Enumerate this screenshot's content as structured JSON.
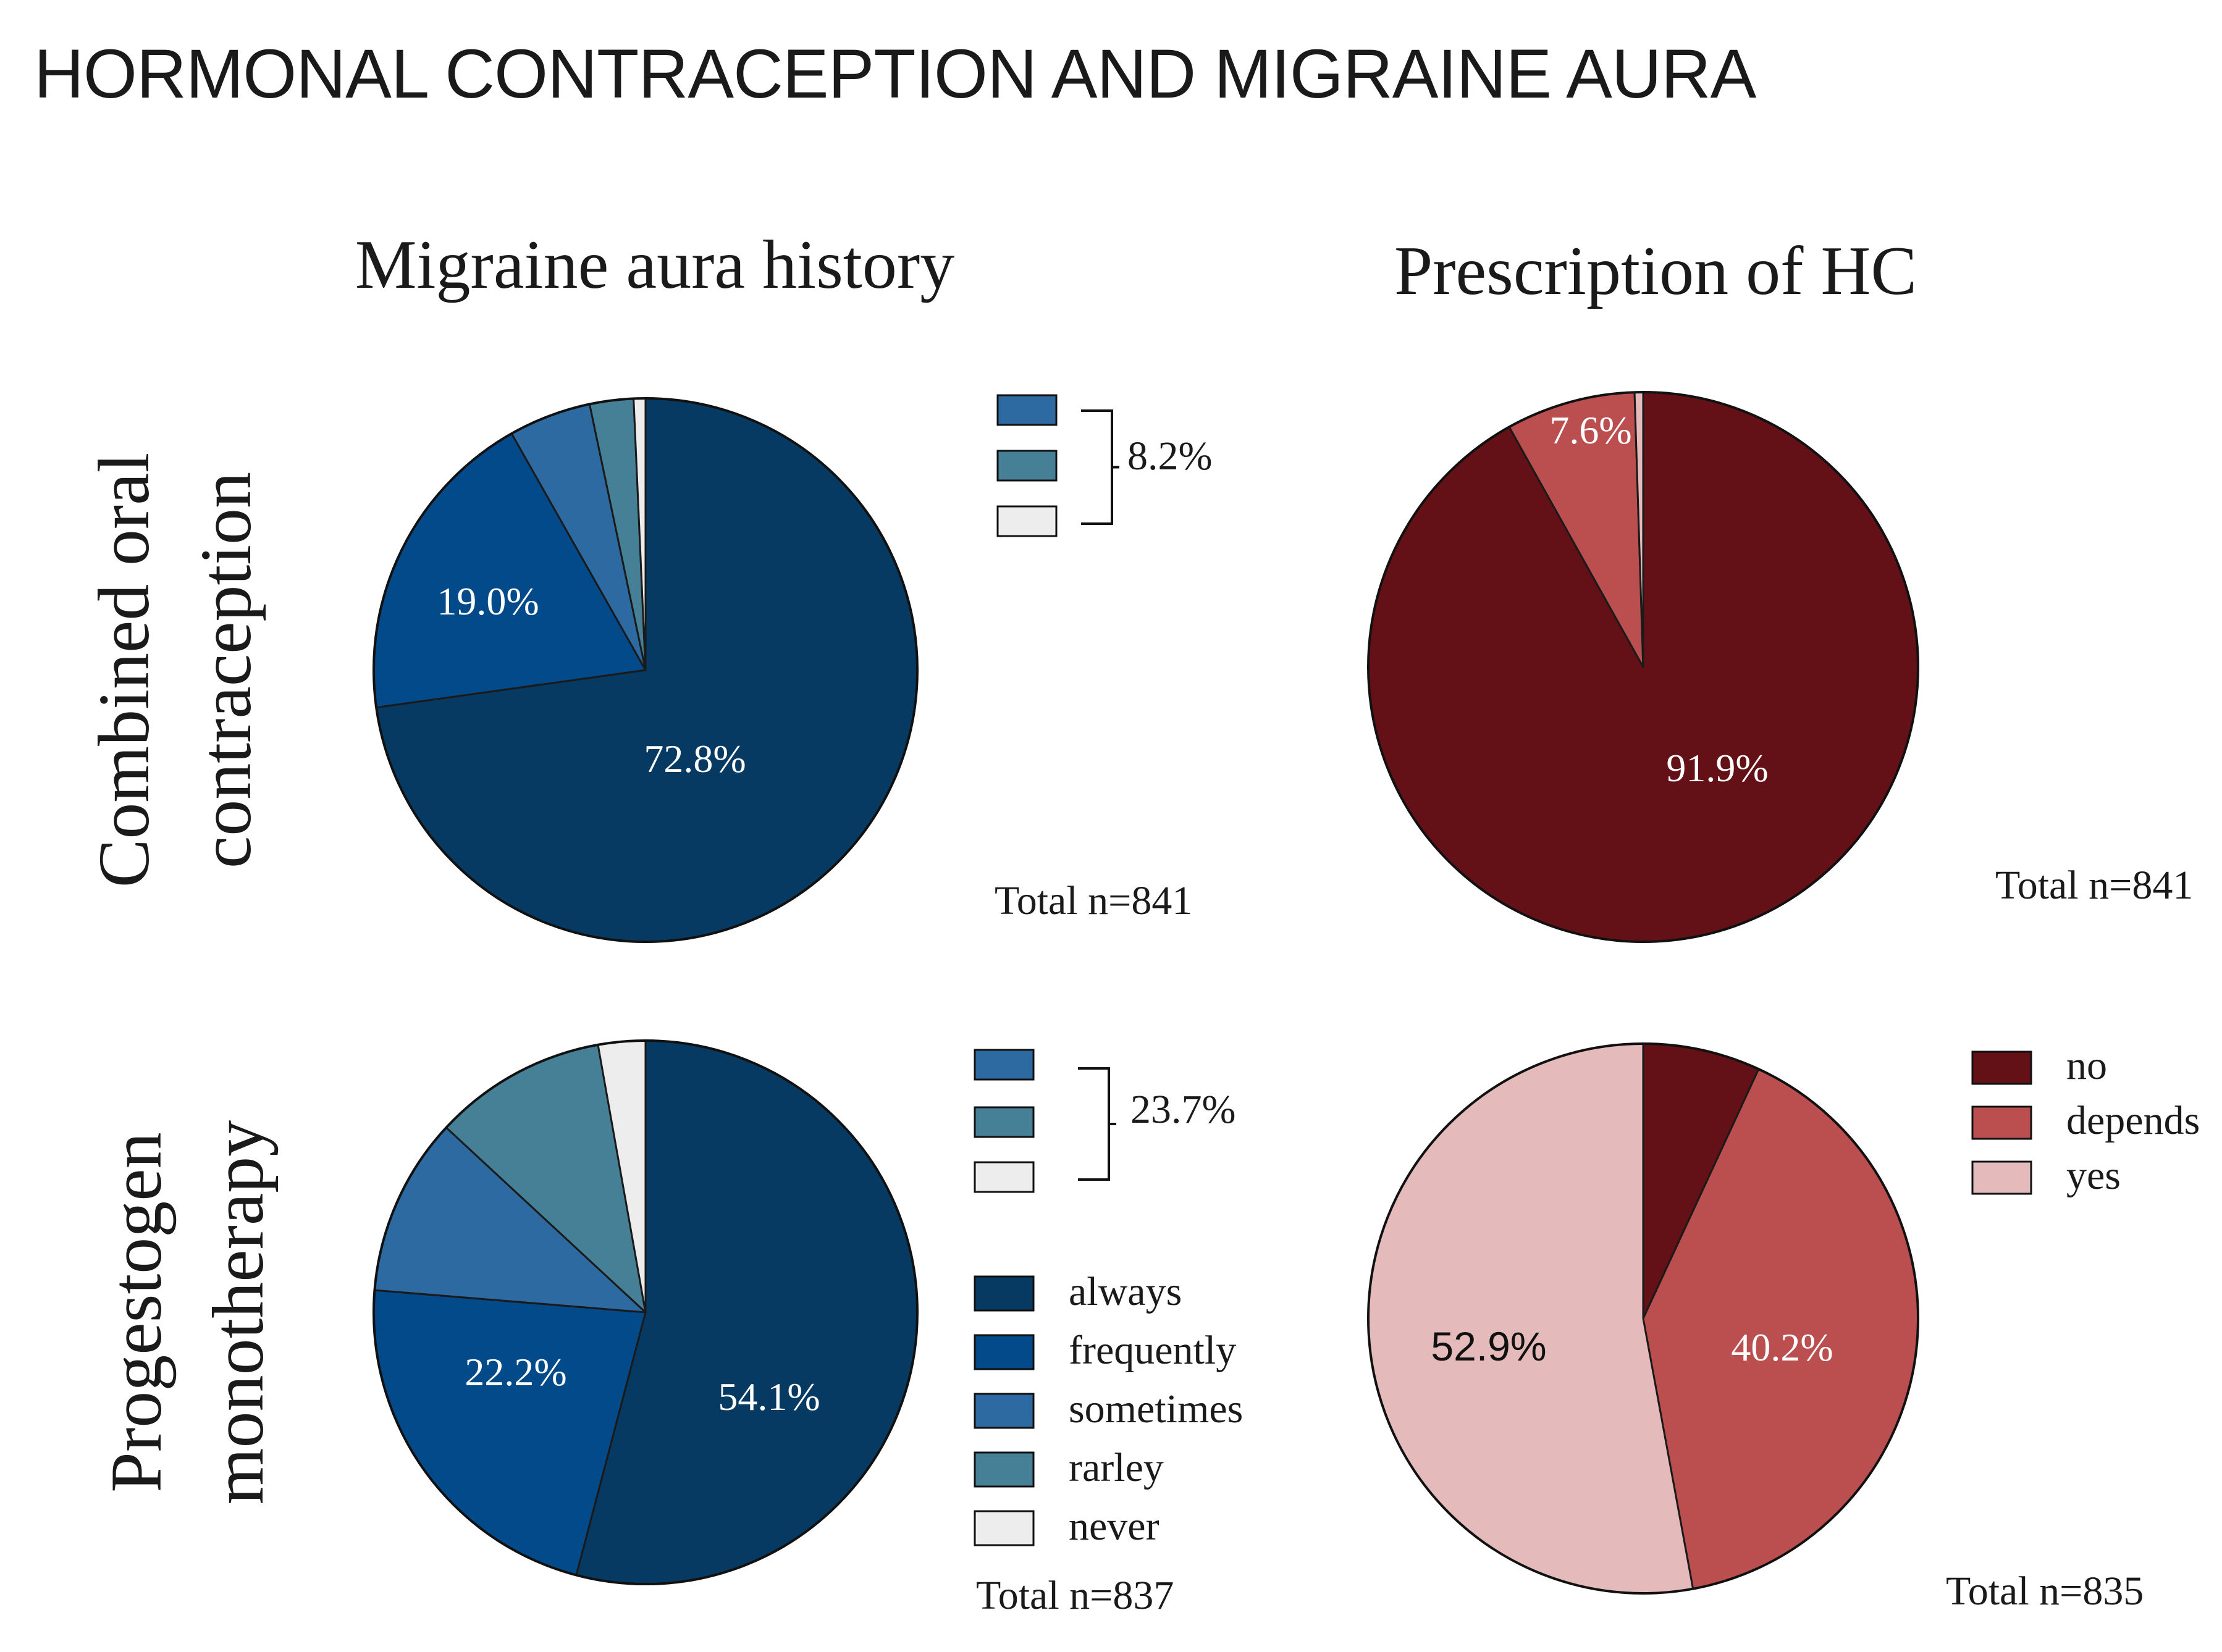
{
  "title": "HORMONAL CONTRACEPTION AND MIGRAINE AURA",
  "column_titles": [
    "Migraine aura history",
    "Prescription of HC"
  ],
  "row_labels": [
    [
      "Combined oral",
      "contraception"
    ],
    [
      "Progestogen",
      "monotherapy"
    ]
  ],
  "aura_legend": {
    "items": [
      {
        "label": "always",
        "color": "#063a63"
      },
      {
        "label": "frequently",
        "color": "#024a8a"
      },
      {
        "label": "sometimes",
        "color": "#2e6aa2"
      },
      {
        "label": "rarley",
        "color": "#468097"
      },
      {
        "label": "never",
        "color": "#ededed"
      }
    ]
  },
  "prescription_legend": {
    "items": [
      {
        "label": "no",
        "color": "#631016"
      },
      {
        "label": "depends",
        "color": "#bb4f4f"
      },
      {
        "label": "yes",
        "color": "#e4baba"
      }
    ]
  },
  "chart_data": [
    {
      "type": "pie",
      "id": "coc-aura",
      "title": "Migraine aura history",
      "row": "Combined oral contraception",
      "categories": [
        "always",
        "frequently",
        "sometimes",
        "rarley",
        "never"
      ],
      "values": [
        72.8,
        19.0,
        4.9,
        2.6,
        0.7
      ],
      "labels": [
        "72.8%",
        "19.0%",
        "",
        "",
        ""
      ],
      "bracket_label": "8.2%",
      "total": "Total n=841"
    },
    {
      "type": "pie",
      "id": "coc-prescription",
      "title": "Prescription of HC",
      "row": "Combined oral contraception",
      "categories": [
        "no",
        "depends",
        "yes"
      ],
      "values": [
        91.9,
        7.6,
        0.5
      ],
      "labels": [
        "91.9%",
        "7.6%",
        ""
      ],
      "total": "Total n=841"
    },
    {
      "type": "pie",
      "id": "pm-aura",
      "title": "Migraine aura history",
      "row": "Progestogen monotherapy",
      "categories": [
        "always",
        "frequently",
        "sometimes",
        "rarley",
        "never"
      ],
      "values": [
        54.1,
        22.2,
        10.6,
        10.3,
        2.8
      ],
      "labels": [
        "54.1%",
        "22.2%",
        "",
        "",
        ""
      ],
      "bracket_label": "23.7%",
      "total": "Total n=837"
    },
    {
      "type": "pie",
      "id": "pm-prescription",
      "title": "Prescription of HC",
      "row": "Progestogen monotherapy",
      "categories": [
        "no",
        "depends",
        "yes"
      ],
      "values": [
        6.9,
        40.2,
        52.9
      ],
      "labels": [
        "",
        "40.2%",
        "52.9%"
      ],
      "total": "Total n=835"
    }
  ]
}
